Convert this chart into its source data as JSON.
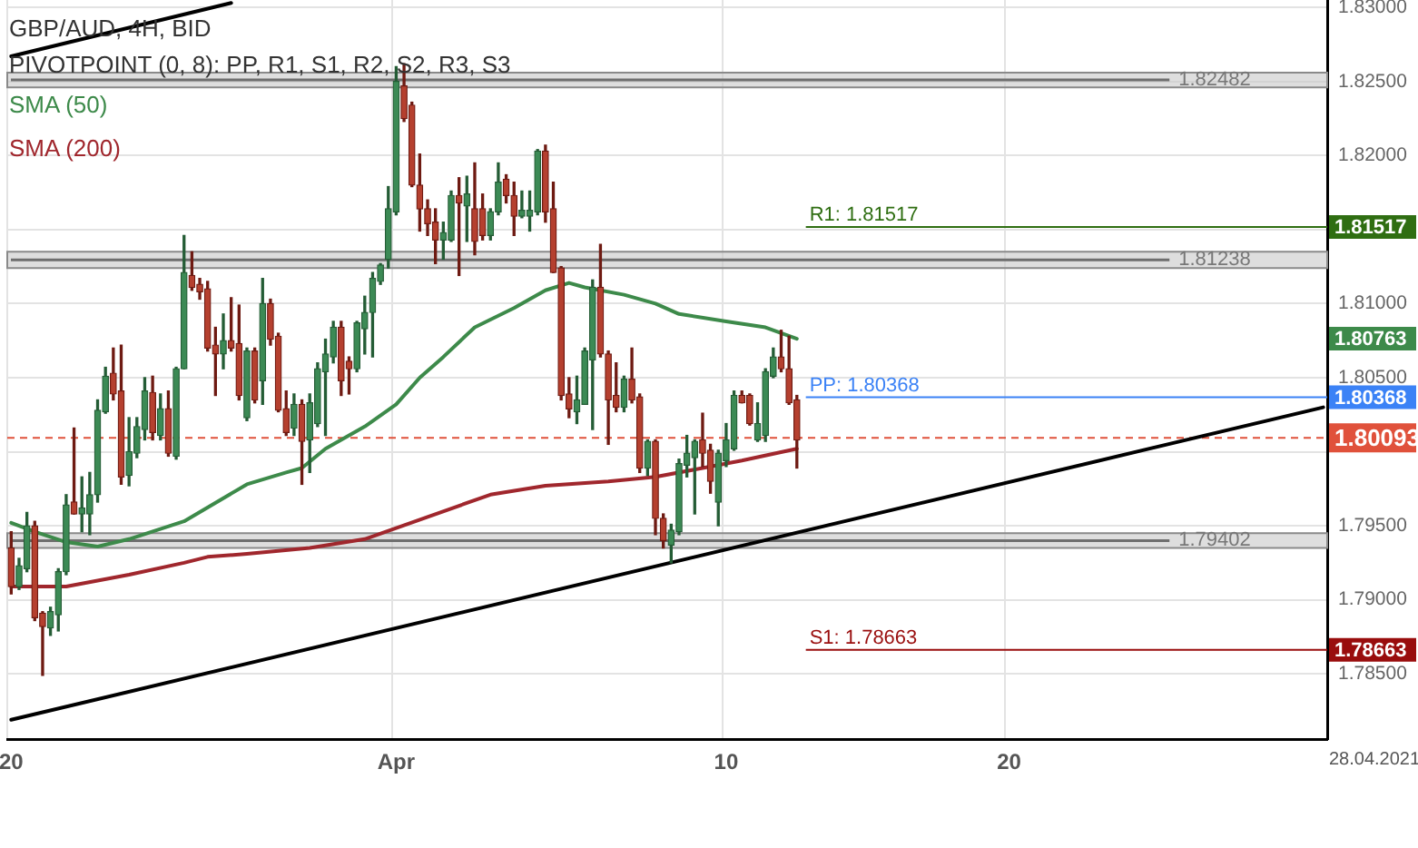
{
  "chart_data": {
    "type": "candlestick",
    "title": "GBP/AUD, 4H, BID",
    "subtitle": "PIVOTPOINT (0, 8): PP, R1, S1, R2, S2, R3, S3",
    "categories": [
      "20",
      null,
      null,
      null,
      null,
      null,
      null,
      null,
      null,
      null,
      null,
      null,
      null,
      null,
      null,
      null,
      null,
      null,
      null,
      null,
      null,
      null,
      null,
      null,
      null,
      null,
      null,
      null,
      null,
      null,
      null,
      null,
      null,
      null,
      null,
      null,
      null,
      null,
      null,
      null,
      null,
      null,
      null,
      null,
      null,
      null,
      null,
      null,
      null,
      "Apr",
      null,
      null,
      null,
      null,
      null,
      null,
      null,
      null,
      null,
      null,
      null,
      null,
      null,
      null,
      null,
      null,
      null,
      null,
      null,
      null,
      null,
      null,
      null,
      null,
      null,
      null,
      null,
      null,
      null,
      null,
      null,
      null,
      null,
      null,
      null,
      null,
      null,
      null,
      null,
      null,
      null,
      "10",
      null,
      null,
      null,
      null,
      null,
      null,
      null,
      null,
      null,
      null,
      null,
      null,
      null,
      null,
      null,
      null,
      null,
      null,
      null,
      null,
      null,
      null,
      null,
      null,
      null,
      null,
      null,
      null,
      null,
      null,
      null,
      null,
      null,
      null,
      null,
      "20",
      null,
      null,
      null,
      null,
      null,
      null,
      null,
      null,
      null,
      null,
      null,
      null,
      null,
      null,
      null,
      null,
      null,
      null,
      null,
      null,
      null,
      null,
      null,
      null,
      null,
      null,
      null,
      null,
      null,
      null,
      null,
      null,
      null,
      null,
      null,
      null,
      null,
      null,
      null,
      null
    ],
    "ohlc": [
      [
        1.7935,
        1.7946,
        1.7904,
        1.7909
      ],
      [
        1.7909,
        1.7928,
        1.7907,
        1.7923
      ],
      [
        1.7921,
        1.7959,
        1.7919,
        1.795
      ],
      [
        1.795,
        1.7953,
        1.7886,
        1.7888
      ],
      [
        1.7891,
        1.7892,
        1.7849,
        1.7882
      ],
      [
        1.7881,
        1.7895,
        1.7876,
        1.7892
      ],
      [
        1.789,
        1.7921,
        1.7879,
        1.7919
      ],
      [
        1.7919,
        1.7971,
        1.7917,
        1.7964
      ],
      [
        1.7966,
        1.8016,
        1.7958,
        1.7958
      ],
      [
        1.7958,
        1.7983,
        1.7946,
        1.7962
      ],
      [
        1.7958,
        1.7986,
        1.7944,
        1.7971
      ],
      [
        1.7971,
        1.8035,
        1.7966,
        1.8028
      ],
      [
        1.8027,
        1.8057,
        1.8026,
        1.8051
      ],
      [
        1.8053,
        1.807,
        1.8035,
        1.8039
      ],
      [
        1.8041,
        1.8072,
        1.7978,
        1.7983
      ],
      [
        1.7984,
        1.8023,
        1.7977,
        1.8
      ],
      [
        1.7999,
        1.8023,
        1.7996,
        1.8017
      ],
      [
        1.8015,
        1.805,
        1.8008,
        1.8041
      ],
      [
        1.804,
        1.8051,
        1.8008,
        1.8013
      ],
      [
        1.8011,
        1.8039,
        1.8008,
        1.8029
      ],
      [
        1.8029,
        1.8041,
        1.7997,
        1.7999
      ],
      [
        1.7997,
        1.8057,
        1.7995,
        1.8056
      ],
      [
        1.8056,
        1.8146,
        1.8056,
        1.8121
      ],
      [
        1.8119,
        1.8135,
        1.8109,
        1.8111
      ],
      [
        1.8113,
        1.8117,
        1.8103,
        1.8108
      ],
      [
        1.811,
        1.8115,
        1.8068,
        1.807
      ],
      [
        1.8072,
        1.8084,
        1.8038,
        1.8066
      ],
      [
        1.8066,
        1.8093,
        1.8056,
        1.8075
      ],
      [
        1.8075,
        1.8104,
        1.8068,
        1.807
      ],
      [
        1.8073,
        1.8099,
        1.8035,
        1.8038
      ],
      [
        1.8023,
        1.807,
        1.8021,
        1.8068
      ],
      [
        1.8068,
        1.807,
        1.8033,
        1.8035
      ],
      [
        1.8048,
        1.8117,
        1.8032,
        1.81
      ],
      [
        1.81,
        1.8103,
        1.8072,
        1.8076
      ],
      [
        1.8078,
        1.808,
        1.8027,
        1.8028
      ],
      [
        1.8029,
        1.8041,
        1.8011,
        1.8013
      ],
      [
        1.8016,
        1.8039,
        1.8011,
        1.8032
      ],
      [
        1.8032,
        1.8035,
        1.7978,
        1.8007
      ],
      [
        1.8008,
        1.8039,
        1.7986,
        1.8033
      ],
      [
        1.8019,
        1.806,
        1.8017,
        1.8056
      ],
      [
        1.8054,
        1.8076,
        1.8011,
        1.8066
      ],
      [
        1.8064,
        1.8088,
        1.806,
        1.8084
      ],
      [
        1.8084,
        1.8088,
        1.8038,
        1.8048
      ],
      [
        1.8061,
        1.8064,
        1.8039,
        1.8056
      ],
      [
        1.8056,
        1.8088,
        1.8054,
        1.8087
      ],
      [
        1.8083,
        1.8105,
        1.8066,
        1.8094
      ],
      [
        1.8094,
        1.8121,
        1.8064,
        1.8117
      ],
      [
        1.8115,
        1.8127,
        1.8113,
        1.8126
      ],
      [
        1.813,
        1.8179,
        1.8124,
        1.8164
      ],
      [
        1.8162,
        1.826,
        1.816,
        1.825
      ],
      [
        1.8247,
        1.8262,
        1.8223,
        1.8225
      ],
      [
        1.8234,
        1.8236,
        1.8179,
        1.818
      ],
      [
        1.818,
        1.8201,
        1.8149,
        1.8164
      ],
      [
        1.8164,
        1.817,
        1.8146,
        1.8154
      ],
      [
        1.8155,
        1.8164,
        1.8127,
        1.8143
      ],
      [
        1.8143,
        1.8155,
        1.813,
        1.8148
      ],
      [
        1.8143,
        1.8176,
        1.8142,
        1.8173
      ],
      [
        1.8173,
        1.8185,
        1.8119,
        1.8168
      ],
      [
        1.8166,
        1.8186,
        1.8142,
        1.8174
      ],
      [
        1.8164,
        1.8195,
        1.8133,
        1.8142
      ],
      [
        1.8164,
        1.8174,
        1.8143,
        1.8146
      ],
      [
        1.8146,
        1.8164,
        1.8143,
        1.8162
      ],
      [
        1.8162,
        1.8195,
        1.816,
        1.8182
      ],
      [
        1.8184,
        1.8187,
        1.8168,
        1.8173
      ],
      [
        1.8173,
        1.8182,
        1.8146,
        1.8159
      ],
      [
        1.8159,
        1.8176,
        1.8158,
        1.8163
      ],
      [
        1.8159,
        1.8176,
        1.8149,
        1.8163
      ],
      [
        1.8162,
        1.8204,
        1.816,
        1.8203
      ],
      [
        1.8203,
        1.8207,
        1.8155,
        1.8162
      ],
      [
        1.8164,
        1.8182,
        1.8121,
        1.8121
      ],
      [
        1.8124,
        1.8125,
        1.8035,
        1.8038
      ],
      [
        1.8039,
        1.805,
        1.8023,
        1.8029
      ],
      [
        1.8027,
        1.8051,
        1.8019,
        1.8035
      ],
      [
        1.8032,
        1.807,
        1.8032,
        1.8068
      ],
      [
        1.8062,
        1.8116,
        1.8015,
        1.8111
      ],
      [
        1.8111,
        1.814,
        1.8064,
        1.8066
      ],
      [
        1.8066,
        1.8068,
        1.8005,
        1.8035
      ],
      [
        1.8038,
        1.806,
        1.8027,
        1.803
      ],
      [
        1.803,
        1.8051,
        1.8027,
        1.8049
      ],
      [
        1.8049,
        1.807,
        1.8033,
        1.8035
      ],
      [
        1.8037,
        1.8039,
        1.7986,
        1.7989
      ],
      [
        1.7989,
        1.8008,
        1.7984,
        1.8007
      ],
      [
        1.8007,
        1.8008,
        1.7944,
        1.7955
      ],
      [
        1.7955,
        1.7958,
        1.7935,
        1.794
      ],
      [
        1.7937,
        1.7951,
        1.7925,
        1.7947
      ],
      [
        1.7946,
        1.7995,
        1.7944,
        1.7992
      ],
      [
        1.7991,
        1.8011,
        1.7983,
        1.7999
      ],
      [
        1.7996,
        1.8008,
        1.7958,
        1.8007
      ],
      [
        1.8008,
        1.8026,
        1.799,
        1.7999
      ],
      [
        1.8001,
        1.8005,
        1.7972,
        1.798
      ],
      [
        1.7966,
        1.8001,
        1.795,
        1.7999
      ],
      [
        1.7994,
        1.8019,
        1.799,
        1.8008
      ],
      [
        1.8002,
        1.8041,
        1.8001,
        1.8038
      ],
      [
        1.8038,
        1.8041,
        1.8033,
        1.8033
      ],
      [
        1.8038,
        1.8039,
        1.8018,
        1.8019
      ],
      [
        1.8008,
        1.8033,
        1.8007,
        1.8019
      ],
      [
        1.8011,
        1.8056,
        1.8007,
        1.8054
      ],
      [
        1.8051,
        1.807,
        1.805,
        1.8064
      ],
      [
        1.8064,
        1.8082,
        1.8054,
        1.8056
      ],
      [
        1.8056,
        1.8078,
        1.8032,
        1.8033
      ],
      [
        1.8035,
        1.8038,
        1.7989,
        1.8008
      ],
      null,
      null,
      null,
      null,
      null,
      null,
      null,
      null,
      null,
      null,
      null,
      null,
      null,
      null,
      null,
      null,
      null,
      null,
      null,
      null,
      null,
      null,
      null,
      null,
      null,
      null,
      null,
      null,
      null,
      null,
      null,
      null,
      null,
      null,
      null,
      null,
      null,
      null,
      null,
      null,
      null,
      null,
      null,
      null,
      null,
      null,
      null,
      null,
      null,
      null,
      null,
      null,
      null,
      null,
      null,
      null,
      null,
      null,
      null,
      null,
      null,
      null,
      null,
      null,
      null,
      null,
      null
    ],
    "series": [
      {
        "type": "line",
        "name": "SMA (50)",
        "color": "#3d8a4a",
        "values": [
          1.7952,
          null,
          null,
          1.7946,
          null,
          null,
          null,
          1.7939,
          null,
          null,
          null,
          1.7936,
          null,
          null,
          null,
          1.7941,
          null,
          null,
          null,
          null,
          null,
          null,
          1.7953,
          null,
          null,
          null,
          null,
          null,
          null,
          null,
          1.7978,
          null,
          null,
          null,
          null,
          1.7986,
          null,
          1.7989,
          null,
          null,
          1.8002,
          null,
          null,
          null,
          null,
          1.8017,
          null,
          null,
          null,
          1.8032,
          null,
          null,
          1.805,
          null,
          null,
          1.8064,
          null,
          null,
          null,
          1.8084,
          null,
          null,
          null,
          null,
          1.8097,
          null,
          null,
          null,
          1.8109,
          null,
          null,
          1.8114,
          null,
          1.8111,
          null,
          null,
          null,
          null,
          1.8106,
          null,
          null,
          null,
          1.81,
          null,
          null,
          1.8093,
          null,
          null,
          null,
          null,
          null,
          1.8088,
          null,
          null,
          null,
          null,
          1.8084,
          null,
          null,
          null,
          1.80763,
          null,
          null,
          null,
          null,
          null,
          null,
          null,
          null,
          null,
          null,
          null,
          null,
          null,
          null,
          null,
          null,
          null,
          null,
          null,
          null,
          null,
          null,
          null,
          null,
          null,
          null,
          null,
          null,
          null,
          null,
          null,
          null,
          null,
          null,
          null,
          null,
          null,
          null,
          null,
          null,
          null,
          null,
          null,
          null,
          null,
          null,
          null,
          null,
          null,
          null,
          null,
          null,
          null,
          null,
          null,
          null,
          null,
          null,
          null,
          null,
          null,
          null,
          null,
          null,
          null,
          null,
          null
        ]
      },
      {
        "type": "line",
        "name": "SMA (200)",
        "color": "#a0272d",
        "values": [
          1.7909,
          null,
          null,
          null,
          null,
          null,
          null,
          1.7909,
          null,
          null,
          null,
          null,
          null,
          null,
          null,
          1.7917,
          null,
          null,
          null,
          null,
          null,
          null,
          1.7925,
          null,
          null,
          1.7929,
          null,
          null,
          null,
          null,
          1.7931,
          null,
          null,
          null,
          null,
          null,
          null,
          null,
          1.7935,
          null,
          null,
          null,
          null,
          null,
          null,
          1.7941,
          null,
          null,
          null,
          null,
          null,
          null,
          null,
          1.7956,
          null,
          null,
          null,
          null,
          null,
          null,
          null,
          1.7971,
          null,
          null,
          null,
          null,
          null,
          null,
          1.7977,
          null,
          null,
          null,
          null,
          null,
          null,
          null,
          1.798,
          null,
          null,
          null,
          null,
          null,
          1.7983,
          null,
          null,
          null,
          null,
          null,
          1.7989,
          null,
          null,
          null,
          null,
          1.7994,
          null,
          null,
          null,
          null,
          null,
          null,
          1.8002,
          null,
          null,
          null,
          null,
          null,
          null,
          null,
          null,
          null,
          null,
          null,
          null,
          null,
          null,
          null,
          null,
          null,
          null,
          null,
          null,
          null,
          null,
          null,
          null,
          null,
          null,
          null,
          null,
          null,
          null,
          null,
          null,
          null,
          null,
          null,
          null,
          null,
          null,
          null,
          null,
          null,
          null,
          null,
          null,
          null,
          null,
          null,
          null,
          null,
          null,
          null,
          null,
          null,
          null,
          null,
          null,
          null,
          null,
          null,
          null,
          null,
          null,
          null,
          null,
          null,
          null,
          null
        ]
      },
      {
        "type": "line",
        "color": "#000000",
        "values": [
          1.8267,
          null,
          null,
          null,
          null,
          null,
          null,
          null,
          null,
          null,
          null,
          null,
          null,
          null,
          null,
          null,
          null,
          null,
          null,
          null,
          null,
          null,
          null,
          null,
          null,
          null,
          null,
          null,
          1.8303,
          null,
          null,
          null,
          null,
          null,
          null,
          null,
          null,
          null,
          null,
          null,
          null,
          null,
          null,
          null,
          null,
          null,
          null,
          null,
          null,
          null,
          null,
          null,
          null,
          null,
          null,
          null,
          null,
          null,
          null,
          null,
          null,
          null,
          null,
          null,
          null,
          null,
          null,
          null,
          null,
          null,
          null,
          null,
          null,
          null,
          null,
          null,
          null,
          null,
          null,
          null,
          null,
          null,
          null,
          null,
          null,
          null,
          null,
          null,
          null,
          null,
          null,
          null,
          null,
          null,
          null,
          null,
          null,
          null,
          null,
          null,
          null,
          null,
          null,
          null,
          null,
          null,
          null,
          null,
          null,
          null,
          null,
          null,
          null,
          null,
          null,
          null,
          null,
          null,
          null,
          null,
          null,
          null,
          null,
          null,
          null,
          null,
          null,
          null,
          null,
          null,
          null,
          null,
          null,
          null,
          null,
          null,
          null,
          null,
          null,
          null,
          null,
          null,
          null,
          null,
          null,
          null,
          null,
          null,
          null,
          null,
          null,
          null,
          null,
          null,
          null,
          null,
          null,
          null,
          null,
          null,
          null,
          null,
          null,
          null,
          null,
          null,
          null,
          null
        ]
      },
      {
        "type": "line",
        "color": "#000000",
        "values": [
          1.7819,
          null,
          null,
          null,
          null,
          null,
          null,
          null,
          null,
          null,
          null,
          null,
          null,
          null,
          null,
          null,
          null,
          null,
          null,
          null,
          null,
          null,
          null,
          null,
          null,
          null,
          null,
          null,
          null,
          null,
          null,
          null,
          null,
          null,
          null,
          null,
          null,
          null,
          null,
          null,
          null,
          null,
          null,
          null,
          null,
          null,
          null,
          null,
          null,
          null,
          null,
          null,
          null,
          null,
          null,
          null,
          null,
          null,
          null,
          null,
          null,
          null,
          null,
          null,
          null,
          null,
          null,
          null,
          null,
          null,
          null,
          null,
          null,
          null,
          null,
          null,
          null,
          null,
          null,
          null,
          null,
          null,
          null,
          null,
          null,
          null,
          null,
          null,
          null,
          null,
          null,
          null,
          null,
          null,
          null,
          null,
          null,
          null,
          null,
          null,
          null,
          null,
          null,
          null,
          null,
          null,
          null,
          null,
          null,
          null,
          null,
          null,
          null,
          null,
          null,
          null,
          null,
          null,
          null,
          null,
          null,
          null,
          null,
          null,
          null,
          null,
          null,
          null,
          null,
          null,
          null,
          null,
          null,
          null,
          null,
          null,
          null,
          null,
          null,
          null,
          null,
          null,
          null,
          null,
          null,
          null,
          null,
          null,
          null,
          null,
          null,
          null,
          null,
          null,
          null,
          null,
          null,
          null,
          null,
          null,
          null,
          null,
          null,
          null,
          null,
          null,
          null,
          1.803
        ]
      }
    ],
    "ylim": [
      1.7806,
      1.8305
    ],
    "yticks": [
      {
        "value": 1.785,
        "label": "1.78500"
      },
      {
        "value": 1.79,
        "label": "1.79000"
      },
      {
        "value": 1.795,
        "label": "1.79500"
      },
      {
        "value": 1.8,
        "label": null
      },
      {
        "value": 1.805,
        "label": "1.80500"
      },
      {
        "value": 1.81,
        "label": "1.81000"
      },
      {
        "value": 1.815,
        "label": null
      },
      {
        "value": 1.82,
        "label": "1.82000"
      },
      {
        "value": 1.825,
        "label": "1.82500"
      },
      {
        "value": 1.83,
        "label": "1.83000"
      }
    ],
    "bands": [
      {
        "axis": "y",
        "from": 1.8246,
        "to": 1.8256,
        "label": "1.82482",
        "color": "#c8c8c8"
      },
      {
        "axis": "y",
        "from": 1.8124,
        "to": 1.8135,
        "label": "1.81238",
        "color": "#c8c8c8"
      },
      {
        "axis": "y",
        "from": 1.7935,
        "to": 1.7945,
        "label": "1.79402",
        "color": "#c8c8c8"
      }
    ],
    "ref_lines": [
      {
        "axis": "y",
        "value": 1.81517,
        "label": "R1: 1.81517",
        "color": "#2f6e12"
      },
      {
        "axis": "y",
        "value": 1.80368,
        "label": "PP: 1.80368",
        "color": "#3b82f6"
      },
      {
        "axis": "y",
        "value": 1.80093,
        "color": "#e0513b",
        "line_style": "dashed"
      },
      {
        "axis": "y",
        "value": 1.78663,
        "label": "S1: 1.78663",
        "color": "#990d0d"
      }
    ],
    "annotations": [
      "28.04.2021",
      "1.81517",
      "1.80368",
      "1.80093",
      "1.78663",
      "1.80763"
    ],
    "grid": true,
    "legend": "top left"
  }
}
